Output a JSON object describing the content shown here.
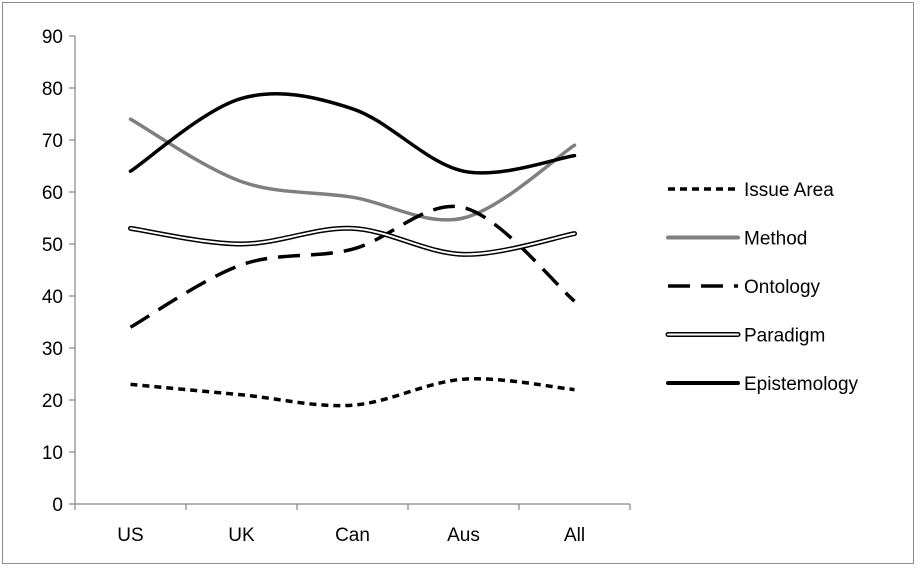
{
  "chart_data": {
    "type": "line",
    "categories": [
      "US",
      "UK",
      "Can",
      "Aus",
      "All"
    ],
    "ylim": [
      0,
      90
    ],
    "yticks": [
      0,
      10,
      20,
      30,
      40,
      50,
      60,
      70,
      80,
      90
    ],
    "grid": false,
    "legend_position": "right",
    "series": [
      {
        "name": "Issue Area",
        "values": [
          23,
          21,
          19,
          24,
          22
        ],
        "color": "#000000",
        "style": "dotted"
      },
      {
        "name": "Method",
        "values": [
          74,
          62,
          59,
          55,
          69
        ],
        "color": "#7f7f7f",
        "style": "solid"
      },
      {
        "name": "Ontology",
        "values": [
          34,
          46,
          49,
          57,
          39
        ],
        "color": "#000000",
        "style": "dashed"
      },
      {
        "name": "Paradigm",
        "values": [
          53,
          50,
          53,
          48,
          52
        ],
        "color": "#000000",
        "style": "double"
      },
      {
        "name": "Epistemology",
        "values": [
          64,
          78,
          76,
          64,
          67
        ],
        "color": "#000000",
        "style": "solid"
      }
    ]
  }
}
